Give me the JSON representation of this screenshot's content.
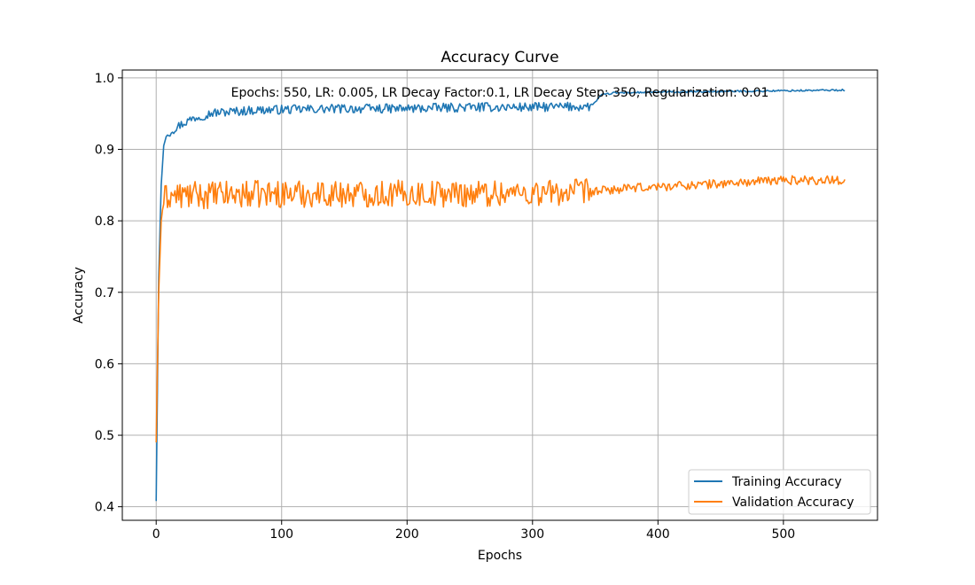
{
  "chart_data": {
    "type": "line",
    "title": "Accuracy Curve",
    "xlabel": "Epochs",
    "ylabel": "Accuracy",
    "annotation": "Epochs: 550, LR: 0.005, LR Decay Factor:0.1, LR Decay Step: 350, Regularization: 0.01",
    "xlim": [
      -27,
      575
    ],
    "ylim": [
      0.381,
      1.011
    ],
    "x_ticks": [
      0,
      100,
      200,
      300,
      400,
      500
    ],
    "y_ticks": [
      0.4,
      0.5,
      0.6,
      0.7,
      0.8,
      0.9,
      1.0
    ],
    "x_tick_labels": [
      "0",
      "100",
      "200",
      "300",
      "400",
      "500"
    ],
    "y_tick_labels": [
      "0.4",
      "0.5",
      "0.6",
      "0.7",
      "0.8",
      "0.9",
      "1.0"
    ],
    "grid": true,
    "legend_position": "bottom-right",
    "series": [
      {
        "name": "Training Accuracy",
        "color": "#1f77b4",
        "keypoints": [
          [
            0,
            0.408
          ],
          [
            2,
            0.72
          ],
          [
            4,
            0.85
          ],
          [
            6,
            0.905
          ],
          [
            8,
            0.918
          ],
          [
            12,
            0.926
          ],
          [
            20,
            0.935
          ],
          [
            30,
            0.944
          ],
          [
            45,
            0.951
          ],
          [
            80,
            0.955
          ],
          [
            150,
            0.957
          ],
          [
            200,
            0.957
          ],
          [
            250,
            0.959
          ],
          [
            300,
            0.959
          ],
          [
            345,
            0.96
          ],
          [
            350,
            0.966
          ],
          [
            355,
            0.976
          ],
          [
            365,
            0.979
          ],
          [
            400,
            0.98
          ],
          [
            450,
            0.981
          ],
          [
            500,
            0.982
          ],
          [
            549,
            0.983
          ]
        ],
        "noise_segments": [
          [
            10,
            345,
            0.004
          ],
          [
            345,
            549,
            0.0008
          ]
        ]
      },
      {
        "name": "Validation Accuracy",
        "color": "#ff7f0e",
        "keypoints": [
          [
            0,
            0.49
          ],
          [
            2,
            0.7
          ],
          [
            4,
            0.8
          ],
          [
            6,
            0.83
          ],
          [
            10,
            0.835
          ],
          [
            100,
            0.838
          ],
          [
            200,
            0.838
          ],
          [
            300,
            0.839
          ],
          [
            345,
            0.84
          ],
          [
            360,
            0.843
          ],
          [
            400,
            0.848
          ],
          [
            450,
            0.852
          ],
          [
            500,
            0.857
          ],
          [
            549,
            0.857
          ]
        ],
        "noise_segments": [
          [
            6,
            345,
            0.012
          ],
          [
            345,
            549,
            0.004
          ]
        ]
      }
    ]
  }
}
